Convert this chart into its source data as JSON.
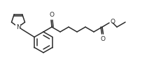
{
  "bg_color": "#ffffff",
  "line_color": "#2a2a2a",
  "line_width": 1.1,
  "text_color": "#2a2a2a",
  "fig_width": 2.2,
  "fig_height": 1.04,
  "dpi": 100,
  "N_label": "N",
  "O_label1": "O",
  "O_label2": "O",
  "O_label3": "O",
  "ring_r": 10,
  "benz_r": 15,
  "benz_inner_r": 10
}
